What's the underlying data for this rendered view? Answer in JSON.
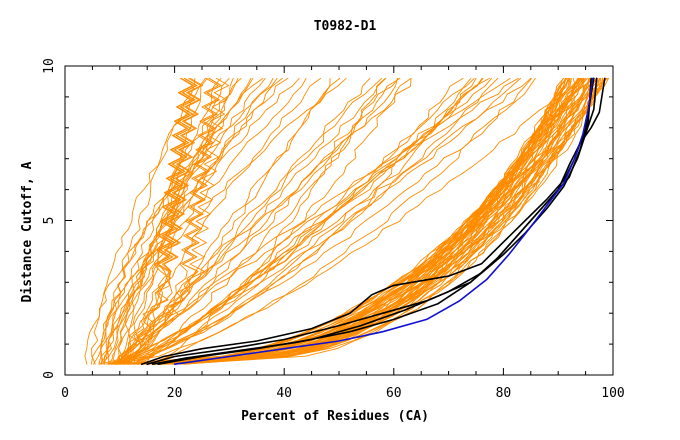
{
  "chart_data": {
    "type": "line",
    "title": "T0982-D1",
    "xlabel": "Percent of Residues (CA)",
    "ylabel": "Distance Cutoff, A",
    "xlim": [
      0,
      100
    ],
    "ylim": [
      0,
      10
    ],
    "xticks": [
      0,
      20,
      40,
      60,
      80,
      100
    ],
    "yticks": [
      0,
      5,
      10
    ],
    "grid": false,
    "legend": "none",
    "colors": {
      "orange": "#ff8c00",
      "black": "#000000",
      "blue": "#1010d0",
      "axis": "#000000"
    },
    "highlight_series": [
      {
        "color": "black",
        "points": [
          [
            14,
            0.35
          ],
          [
            18,
            0.6
          ],
          [
            25,
            0.85
          ],
          [
            35,
            1.1
          ],
          [
            45,
            1.5
          ],
          [
            52,
            2.0
          ],
          [
            56,
            2.6
          ],
          [
            60,
            2.9
          ],
          [
            70,
            3.2
          ],
          [
            76,
            3.6
          ],
          [
            80,
            4.3
          ],
          [
            84,
            5.0
          ],
          [
            88,
            5.7
          ],
          [
            91,
            6.3
          ],
          [
            93,
            7.0
          ],
          [
            95,
            8.0
          ],
          [
            96.5,
            9.6
          ]
        ]
      },
      {
        "color": "black",
        "points": [
          [
            15,
            0.35
          ],
          [
            20,
            0.6
          ],
          [
            30,
            0.85
          ],
          [
            40,
            1.15
          ],
          [
            50,
            1.6
          ],
          [
            58,
            2.0
          ],
          [
            66,
            2.4
          ],
          [
            74,
            3.0
          ],
          [
            78,
            3.6
          ],
          [
            82,
            4.4
          ],
          [
            86,
            5.2
          ],
          [
            89,
            5.8
          ],
          [
            92,
            6.4
          ],
          [
            94,
            7.3
          ],
          [
            95.5,
            8.2
          ],
          [
            96,
            9.6
          ]
        ]
      },
      {
        "color": "black",
        "points": [
          [
            16,
            0.35
          ],
          [
            22,
            0.55
          ],
          [
            32,
            0.8
          ],
          [
            42,
            1.05
          ],
          [
            52,
            1.4
          ],
          [
            60,
            1.8
          ],
          [
            68,
            2.3
          ],
          [
            74,
            3.0
          ],
          [
            79,
            3.8
          ],
          [
            83,
            4.6
          ],
          [
            87,
            5.4
          ],
          [
            90,
            6.0
          ],
          [
            92,
            6.8
          ],
          [
            94,
            7.5
          ],
          [
            96,
            8.0
          ],
          [
            97.5,
            8.5
          ],
          [
            98.5,
            9.6
          ]
        ]
      },
      {
        "color": "black",
        "points": [
          [
            17,
            0.35
          ],
          [
            25,
            0.6
          ],
          [
            35,
            0.85
          ],
          [
            45,
            1.15
          ],
          [
            54,
            1.6
          ],
          [
            62,
            2.1
          ],
          [
            70,
            2.7
          ],
          [
            76,
            3.3
          ],
          [
            80,
            3.9
          ],
          [
            84,
            4.6
          ],
          [
            88,
            5.4
          ],
          [
            91,
            6.1
          ],
          [
            93.5,
            7.0
          ],
          [
            95,
            7.8
          ],
          [
            96.5,
            8.6
          ],
          [
            97,
            9.6
          ]
        ]
      },
      {
        "color": "blue",
        "points": [
          [
            20,
            0.35
          ],
          [
            30,
            0.6
          ],
          [
            40,
            0.85
          ],
          [
            50,
            1.1
          ],
          [
            58,
            1.4
          ],
          [
            66,
            1.8
          ],
          [
            72,
            2.4
          ],
          [
            77,
            3.1
          ],
          [
            81,
            3.9
          ],
          [
            85,
            4.8
          ],
          [
            88,
            5.5
          ],
          [
            91,
            6.2
          ],
          [
            93,
            7.0
          ],
          [
            94.5,
            7.8
          ],
          [
            95.5,
            8.6
          ],
          [
            96.3,
            9.6
          ]
        ]
      }
    ]
  }
}
